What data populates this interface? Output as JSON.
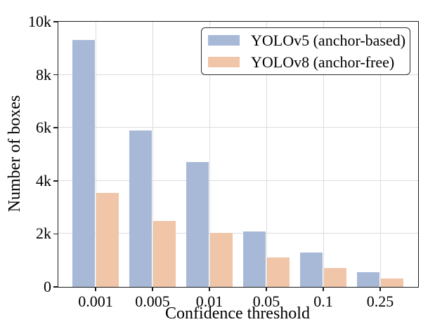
{
  "chart_data": {
    "type": "bar",
    "title": "",
    "xlabel": "Confidence threshold",
    "ylabel": "Number of boxes",
    "categories": [
      "0.001",
      "0.005",
      "0.01",
      "0.05",
      "0.1",
      "0.25"
    ],
    "series": [
      {
        "name": "YOLOv5 (anchor-based)",
        "color": "#a8b9d8",
        "values": [
          9300,
          5900,
          4700,
          2100,
          1300,
          550
        ]
      },
      {
        "name": "YOLOv8 (anchor-free)",
        "color": "#f0c5a8",
        "values": [
          3550,
          2500,
          2050,
          1100,
          720,
          330
        ]
      }
    ],
    "ylim": [
      0,
      10000
    ],
    "yticks": [
      {
        "value": 0,
        "label": "0"
      },
      {
        "value": 2000,
        "label": "2k"
      },
      {
        "value": 4000,
        "label": "4k"
      },
      {
        "value": 6000,
        "label": "6k"
      },
      {
        "value": 8000,
        "label": "8k"
      },
      {
        "value": 10000,
        "label": "10k"
      }
    ],
    "grid": true,
    "grid_color": "#dcdcdc",
    "spine_color": "#1a1a1a",
    "background_color": "#ffffff",
    "legend_position": "upper right"
  }
}
